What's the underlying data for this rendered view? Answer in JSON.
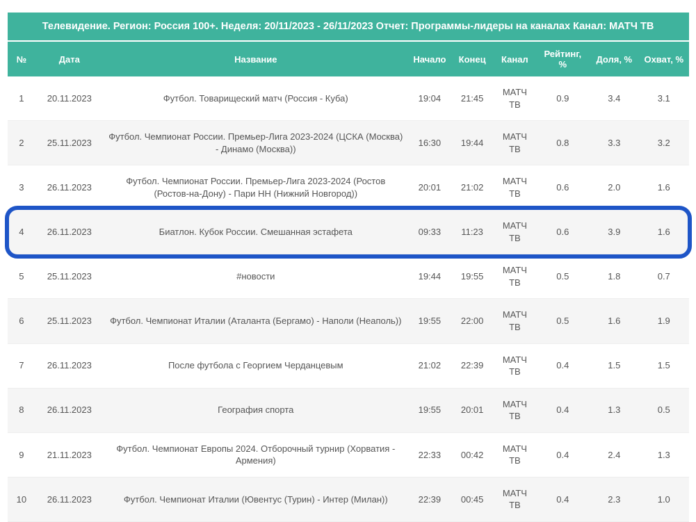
{
  "title": "Телевидение. Регион: Россия 100+. Неделя: 20/11/2023 - 26/11/2023 Отчет: Программы-лидеры на каналах Канал: МАТЧ ТВ",
  "columns": {
    "num": "№",
    "date": "Дата",
    "name": "Название",
    "start": "Начало",
    "end": "Конец",
    "channel": "Канал",
    "rating": "Рейтинг, %",
    "share": "Доля, %",
    "reach": "Охват, %"
  },
  "highlight_color": "#1e55c7",
  "header_bg": "#3fb39d",
  "rows": [
    {
      "num": "1",
      "date": "20.11.2023",
      "name": "Футбол. Товарищеский матч (Россия - Куба)",
      "start": "19:04",
      "end": "21:45",
      "channel": "МАТЧ ТВ",
      "rating": "0.9",
      "share": "3.4",
      "reach": "3.1",
      "highlight": false
    },
    {
      "num": "2",
      "date": "25.11.2023",
      "name": "Футбол. Чемпионат России. Премьер-Лига 2023-2024 (ЦСКА (Москва) - Динамо (Москва))",
      "start": "16:30",
      "end": "19:44",
      "channel": "МАТЧ ТВ",
      "rating": "0.8",
      "share": "3.3",
      "reach": "3.2",
      "highlight": false
    },
    {
      "num": "3",
      "date": "26.11.2023",
      "name": "Футбол. Чемпионат России. Премьер-Лига 2023-2024 (Ростов (Ростов-на-Дону) - Пари НН (Нижний Новгород))",
      "start": "20:01",
      "end": "21:02",
      "channel": "МАТЧ ТВ",
      "rating": "0.6",
      "share": "2.0",
      "reach": "1.6",
      "highlight": false
    },
    {
      "num": "4",
      "date": "26.11.2023",
      "name": "Биатлон. Кубок России. Смешанная эстафета",
      "start": "09:33",
      "end": "11:23",
      "channel": "МАТЧ ТВ",
      "rating": "0.6",
      "share": "3.9",
      "reach": "1.6",
      "highlight": true
    },
    {
      "num": "5",
      "date": "25.11.2023",
      "name": "#новости",
      "start": "19:44",
      "end": "19:55",
      "channel": "МАТЧ ТВ",
      "rating": "0.5",
      "share": "1.8",
      "reach": "0.7",
      "highlight": false
    },
    {
      "num": "6",
      "date": "25.11.2023",
      "name": "Футбол. Чемпионат Италии (Аталанта (Бергамо) - Наполи (Неаполь))",
      "start": "19:55",
      "end": "22:00",
      "channel": "МАТЧ ТВ",
      "rating": "0.5",
      "share": "1.6",
      "reach": "1.9",
      "highlight": false
    },
    {
      "num": "7",
      "date": "26.11.2023",
      "name": "После футбола с Георгием Черданцевым",
      "start": "21:02",
      "end": "22:39",
      "channel": "МАТЧ ТВ",
      "rating": "0.4",
      "share": "1.5",
      "reach": "1.5",
      "highlight": false
    },
    {
      "num": "8",
      "date": "26.11.2023",
      "name": "География спорта",
      "start": "19:55",
      "end": "20:01",
      "channel": "МАТЧ ТВ",
      "rating": "0.4",
      "share": "1.3",
      "reach": "0.5",
      "highlight": false
    },
    {
      "num": "9",
      "date": "21.11.2023",
      "name": "Футбол. Чемпионат Европы 2024. Отборочный турнир (Хорватия - Армения)",
      "start": "22:33",
      "end": "00:42",
      "channel": "МАТЧ ТВ",
      "rating": "0.4",
      "share": "2.4",
      "reach": "1.3",
      "highlight": false
    },
    {
      "num": "10",
      "date": "26.11.2023",
      "name": "Футбол. Чемпионат Италии (Ювентус (Турин) - Интер (Милан))",
      "start": "22:39",
      "end": "00:45",
      "channel": "МАТЧ ТВ",
      "rating": "0.4",
      "share": "2.3",
      "reach": "1.0",
      "highlight": false
    }
  ]
}
